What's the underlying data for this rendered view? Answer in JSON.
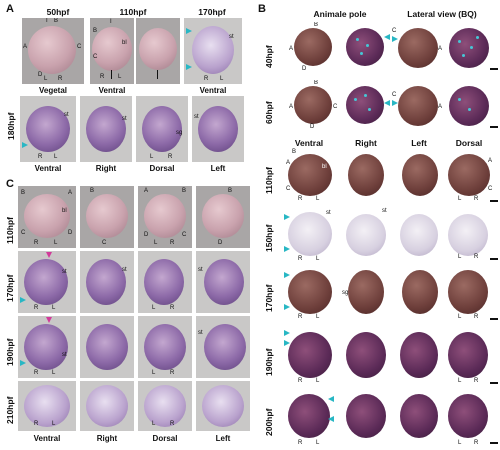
{
  "panels": {
    "A": {
      "letter": "A",
      "top_cols": [
        "50hpf",
        "110hpf",
        "170hpf"
      ],
      "top_views": [
        "Vegetal",
        "Ventral",
        "Ventral"
      ],
      "bottom_row": "180hpf",
      "bottom_views": [
        "Ventral",
        "Right",
        "Dorsal",
        "Left"
      ],
      "labels": {
        "A": "A",
        "B": "B",
        "C": "C",
        "D": "D",
        "I": "I",
        "L": "L",
        "R": "R",
        "bl": "bl",
        "st": "st",
        "sg": "sg"
      }
    },
    "B": {
      "letter": "B",
      "top_cols": [
        "Animale pole",
        "Lateral view (BQ)"
      ],
      "top_rows": [
        "40hpf",
        "60hpf"
      ],
      "bottom_cols": [
        "Ventral",
        "Right",
        "Left",
        "Dorsal"
      ],
      "bottom_rows": [
        "110hpf",
        "150hpf",
        "170hpf",
        "190hpf",
        "200hpf"
      ],
      "labels": {
        "A": "A",
        "B": "B",
        "C": "C",
        "D": "D",
        "L": "L",
        "R": "R",
        "bl": "bl",
        "st": "st",
        "sg": "sg"
      }
    },
    "C": {
      "letter": "C",
      "rows": [
        "110hpf",
        "170hpf",
        "190hpf",
        "210hpf"
      ],
      "bottom_views": [
        "Ventral",
        "Right",
        "Dorsal",
        "Left"
      ],
      "labels": {
        "A": "A",
        "B": "B",
        "C": "C",
        "D": "D",
        "L": "L",
        "R": "R",
        "bl": "bl",
        "st": "st"
      }
    }
  },
  "colors": {
    "accent_cyan": "#28b7c4",
    "accent_magenta": "#d23a9a"
  }
}
